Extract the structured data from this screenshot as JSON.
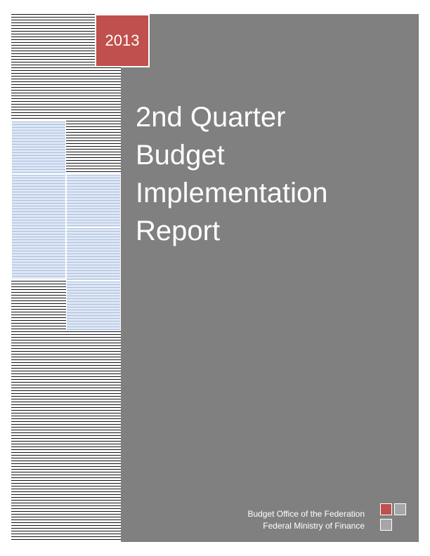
{
  "cover": {
    "year": "2013",
    "title_lines": [
      "2nd Quarter",
      "Budget",
      "Implementation",
      "Report"
    ],
    "publisher_lines": [
      "Budget Office of the Federation",
      "Federal Ministry of Finance"
    ]
  },
  "colors": {
    "panel": "#808080",
    "accent_red": "#c0504d",
    "accent_blue": "#a8bedf",
    "stripe": "#111111"
  },
  "icons": [
    "decorative-squares-icon"
  ]
}
